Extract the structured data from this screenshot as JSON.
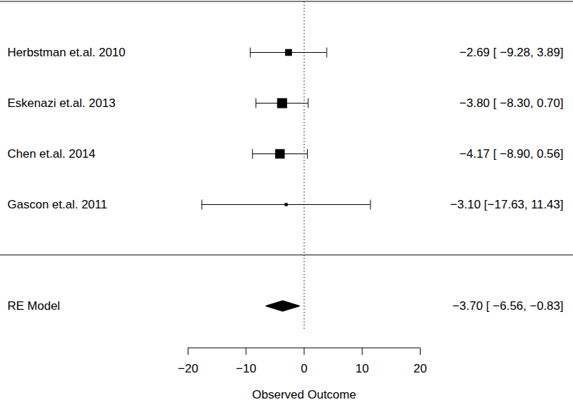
{
  "chart_data": {
    "type": "forest",
    "categories": [
      "Herbstman et.al. 2010",
      "Eskenazi et.al. 2013",
      "Chen et.al. 2014",
      "Gascon et.al. 2011"
    ],
    "values": [
      -2.69,
      -3.8,
      -4.17,
      -3.1
    ],
    "ci_lower": [
      -9.28,
      -8.3,
      -8.9,
      -17.63
    ],
    "ci_upper": [
      3.89,
      0.7,
      0.56,
      11.43
    ],
    "weights": [
      18.9,
      40.5,
      36.7,
      3.9
    ],
    "value_labels": [
      "−2.69 [ −9.28, 3.89]",
      "−3.80 [ −8.30, 0.70]",
      "−4.17 [ −8.90, 0.56]",
      "−3.10 [−17.63, 11.43]"
    ],
    "summary": {
      "label": "RE Model",
      "value": -3.7,
      "ci_lower": -6.56,
      "ci_upper": -0.83,
      "value_label": "−3.70 [ −6.56, −0.83]"
    },
    "xlabel": "Observed Outcome",
    "xlim": [
      -20,
      20
    ],
    "xticks": [
      -20,
      -10,
      0,
      10,
      20
    ],
    "reference": 0,
    "color": "#000000"
  }
}
